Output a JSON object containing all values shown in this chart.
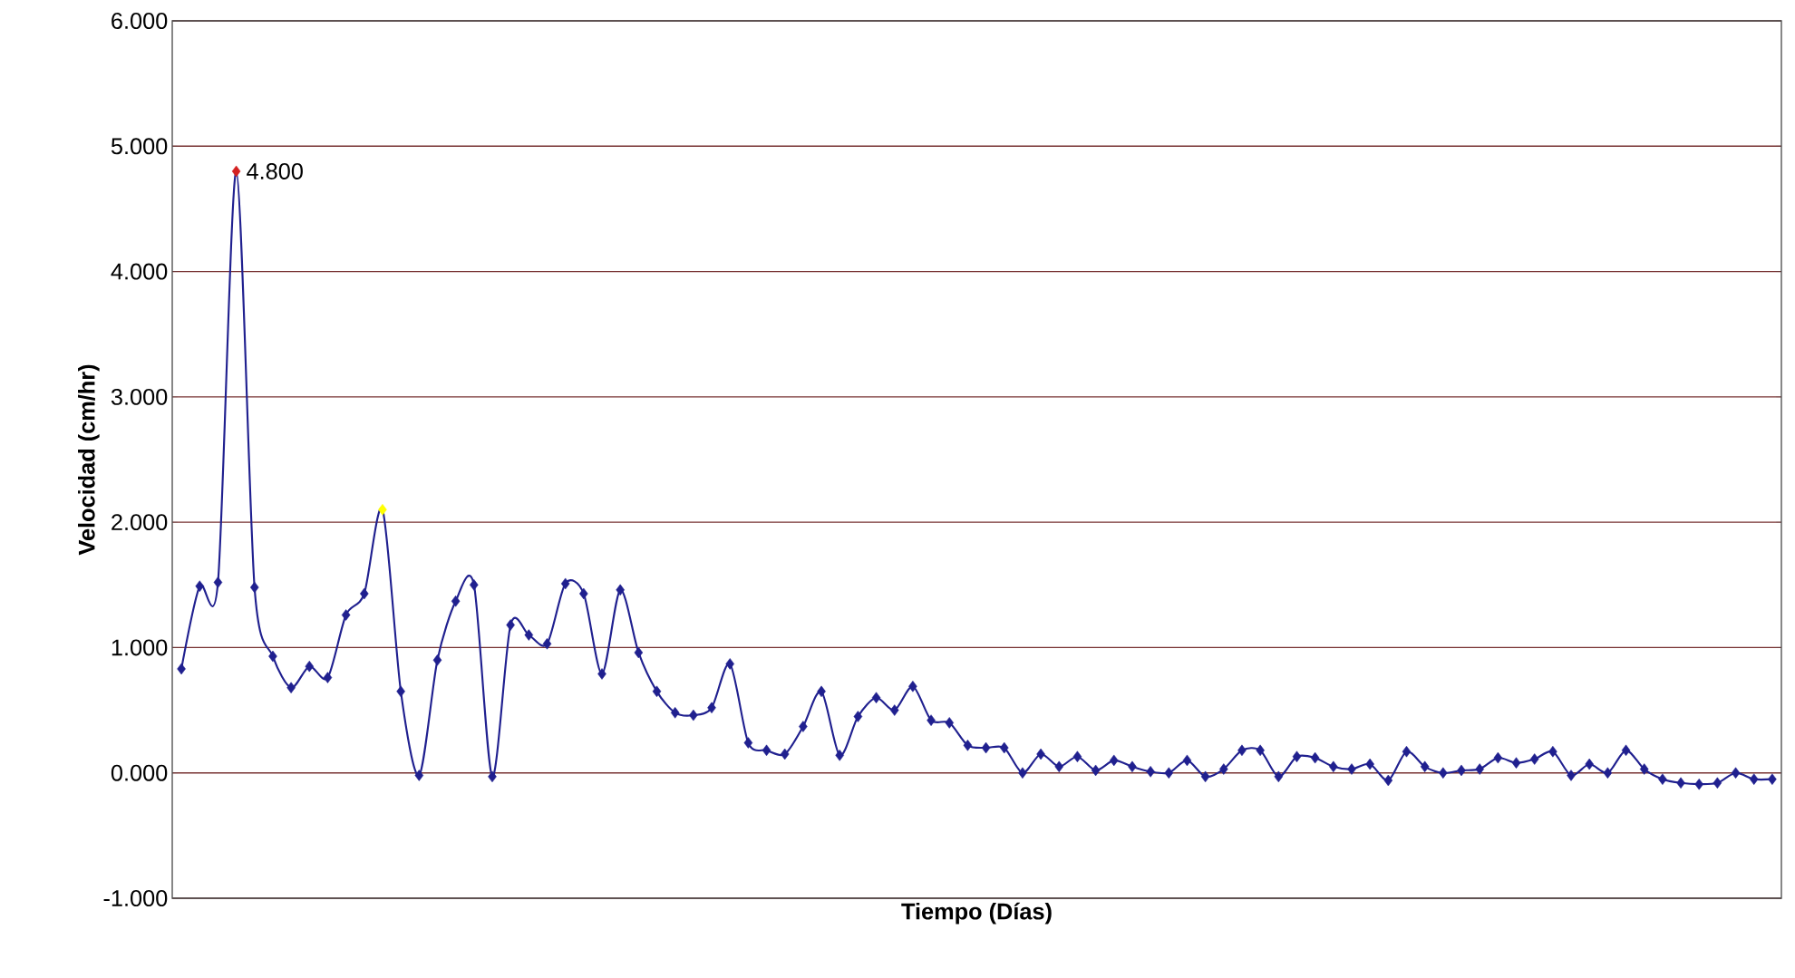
{
  "chart_data": {
    "type": "line",
    "xlabel": "Tiempo (Días)",
    "ylabel": "Velocidad (cm/hr)",
    "categories": [
      null,
      null,
      null,
      null,
      null,
      null,
      null,
      null,
      null,
      null,
      null,
      null,
      null,
      null,
      null,
      null,
      null,
      null,
      null,
      null,
      null,
      null,
      null,
      null,
      null,
      null,
      null,
      null,
      null,
      null,
      null,
      null,
      null,
      null,
      null,
      null,
      null,
      null,
      null,
      null,
      null,
      null,
      null,
      null,
      null,
      null,
      null,
      null,
      null,
      null,
      null,
      null,
      null,
      null,
      null,
      null,
      null,
      null,
      null,
      null,
      null,
      null,
      null,
      null,
      null,
      null,
      null,
      null,
      null,
      null,
      null,
      null,
      null,
      null,
      null,
      null,
      null,
      null,
      null,
      null,
      null,
      null,
      null,
      null,
      null,
      null,
      null,
      null
    ],
    "series": [
      {
        "color": "#20208f",
        "values": [
          0.83,
          1.49,
          1.52,
          4.8,
          1.48,
          0.93,
          0.68,
          0.85,
          0.76,
          1.26,
          1.43,
          2.1,
          0.65,
          -0.02,
          0.9,
          1.37,
          1.5,
          -0.03,
          1.18,
          1.1,
          1.03,
          1.51,
          1.43,
          0.79,
          1.46,
          0.96,
          0.65,
          0.48,
          0.46,
          0.52,
          0.87,
          0.24,
          0.18,
          0.15,
          0.37,
          0.65,
          0.14,
          0.45,
          0.6,
          0.5,
          0.69,
          0.42,
          0.4,
          0.22,
          0.2,
          0.2,
          0.0,
          0.15,
          0.05,
          0.13,
          0.02,
          0.1,
          0.05,
          0.01,
          0.0,
          0.1,
          -0.03,
          0.03,
          0.18,
          0.18,
          -0.03,
          0.13,
          0.12,
          0.05,
          0.03,
          0.07,
          -0.06,
          0.17,
          0.05,
          0.0,
          0.02,
          0.03,
          0.12,
          0.08,
          0.11,
          0.17,
          -0.02,
          0.07,
          0.0,
          0.18,
          0.03,
          -0.05,
          -0.08,
          -0.09,
          -0.08,
          0.0,
          -0.05,
          -0.05
        ],
        "colors": [
          "#20208f",
          "#20208f",
          "#20208f",
          "#d42020",
          "#20208f",
          "#20208f",
          "#20208f",
          "#20208f",
          "#20208f",
          "#20208f",
          "#20208f",
          "#ffff00",
          "#20208f",
          "#20208f",
          "#20208f",
          "#20208f",
          "#20208f",
          "#20208f",
          "#20208f",
          "#20208f",
          "#20208f",
          "#20208f",
          "#20208f",
          "#20208f",
          "#20208f",
          "#20208f",
          "#20208f",
          "#20208f",
          "#20208f",
          "#20208f",
          "#20208f",
          "#20208f",
          "#20208f",
          "#20208f",
          "#20208f",
          "#20208f",
          "#20208f",
          "#20208f",
          "#20208f",
          "#20208f",
          "#20208f",
          "#20208f",
          "#20208f",
          "#20208f",
          "#20208f",
          "#20208f",
          "#20208f",
          "#20208f",
          "#20208f",
          "#20208f",
          "#20208f",
          "#20208f",
          "#20208f",
          "#20208f",
          "#20208f",
          "#20208f",
          "#20208f",
          "#20208f",
          "#20208f",
          "#20208f",
          "#20208f",
          "#20208f",
          "#20208f",
          "#20208f",
          "#20208f",
          "#20208f",
          "#20208f",
          "#20208f",
          "#20208f",
          "#20208f",
          "#20208f",
          "#20208f",
          "#20208f",
          "#20208f",
          "#20208f",
          "#20208f",
          "#20208f",
          "#20208f",
          "#20208f",
          "#20208f",
          "#20208f",
          "#20208f",
          "#20208f",
          "#20208f",
          "#20208f",
          "#20208f",
          "#20208f",
          "#20208f"
        ],
        "value_labels": [
          null,
          null,
          null,
          "4.800",
          null,
          null,
          null,
          null,
          null,
          null,
          null,
          null,
          null,
          null,
          null,
          null,
          null,
          null,
          null,
          null,
          null,
          null,
          null,
          null,
          null,
          null,
          null,
          null,
          null,
          null,
          null,
          null,
          null,
          null,
          null,
          null,
          null,
          null,
          null,
          null,
          null,
          null,
          null,
          null,
          null,
          null,
          null,
          null,
          null,
          null,
          null,
          null,
          null,
          null,
          null,
          null,
          null,
          null,
          null,
          null,
          null,
          null,
          null,
          null,
          null,
          null,
          null,
          null,
          null,
          null,
          null,
          null,
          null,
          null,
          null,
          null,
          null,
          null,
          null,
          null,
          null,
          null,
          null,
          null,
          null,
          null,
          null,
          null
        ]
      }
    ],
    "ylim": [
      -1,
      6
    ],
    "yticks": [
      {
        "value": -1,
        "label": "-1.000"
      },
      {
        "value": 0,
        "label": "0.000"
      },
      {
        "value": 1,
        "label": "1.000"
      },
      {
        "value": 2,
        "label": "2.000"
      },
      {
        "value": 3,
        "label": "3.000"
      },
      {
        "value": 4,
        "label": "4.000"
      },
      {
        "value": 5,
        "label": "5.000"
      },
      {
        "value": 6,
        "label": "6.000"
      }
    ],
    "grid": "y",
    "marker": "diamond",
    "line_style": "solid"
  }
}
